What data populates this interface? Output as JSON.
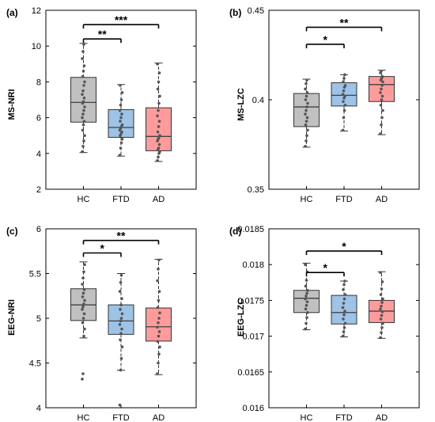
{
  "colors": {
    "HC": "#c0c0c0",
    "FTD": "#9dc3e6",
    "AD": "#ff9b9b",
    "median": "#404040",
    "points": "#555555",
    "axis": "#000000"
  },
  "chart_data": [
    {
      "type": "box",
      "panel": "(a)",
      "ylabel": "MS-NRI",
      "categories": [
        "HC",
        "FTD",
        "AD"
      ],
      "ylim": [
        2,
        12
      ],
      "yticks": [
        "2",
        "4",
        "6",
        "8",
        "10",
        "12"
      ],
      "boxes": [
        {
          "category": "HC",
          "min": 4.05,
          "q1": 5.75,
          "median": 6.85,
          "q3": 8.25,
          "max": 10.15,
          "points": [
            4.1,
            4.4,
            4.7,
            5.0,
            5.3,
            5.6,
            5.8,
            6.0,
            6.2,
            6.4,
            6.6,
            6.8,
            6.9,
            7.1,
            7.3,
            7.5,
            7.8,
            8.0,
            8.3,
            8.6,
            8.9,
            9.3,
            9.7,
            10.1
          ]
        },
        {
          "category": "FTD",
          "min": 3.85,
          "q1": 4.9,
          "median": 5.45,
          "q3": 6.45,
          "max": 7.85,
          "points": [
            3.9,
            4.3,
            4.6,
            4.8,
            5.0,
            5.1,
            5.2,
            5.3,
            5.4,
            5.5,
            5.6,
            5.8,
            6.0,
            6.2,
            6.4,
            6.7,
            7.0,
            7.4,
            7.8
          ]
        },
        {
          "category": "AD",
          "min": 3.55,
          "q1": 4.15,
          "median": 4.95,
          "q3": 6.55,
          "max": 9.05,
          "points": [
            3.6,
            3.8,
            4.0,
            4.1,
            4.2,
            4.3,
            4.5,
            4.7,
            4.8,
            4.9,
            5.0,
            5.2,
            5.5,
            5.8,
            6.1,
            6.4,
            6.8,
            7.2,
            7.6,
            8.0,
            8.5,
            9.0
          ]
        }
      ],
      "significance": [
        {
          "from": "HC",
          "to": "FTD",
          "y": 10.4,
          "label": "**"
        },
        {
          "from": "HC",
          "to": "AD",
          "y": 11.2,
          "label": "***"
        }
      ]
    },
    {
      "type": "box",
      "panel": "(b)",
      "ylabel": "MS-LZC",
      "categories": [
        "HC",
        "FTD",
        "AD"
      ],
      "ylim": [
        0.35,
        0.45
      ],
      "yticks": [
        "0.35",
        "0.4",
        "0.45"
      ],
      "boxes": [
        {
          "category": "HC",
          "min": 0.3735,
          "q1": 0.385,
          "median": 0.396,
          "q3": 0.4035,
          "max": 0.4115,
          "points": [
            0.374,
            0.377,
            0.38,
            0.383,
            0.386,
            0.388,
            0.39,
            0.392,
            0.394,
            0.396,
            0.398,
            0.4,
            0.402,
            0.404,
            0.406,
            0.409,
            0.411
          ]
        },
        {
          "category": "FTD",
          "min": 0.3825,
          "q1": 0.3965,
          "median": 0.4025,
          "q3": 0.4095,
          "max": 0.414,
          "points": [
            0.383,
            0.39,
            0.394,
            0.397,
            0.399,
            0.401,
            0.402,
            0.403,
            0.405,
            0.407,
            0.408,
            0.41,
            0.412,
            0.414
          ]
        },
        {
          "category": "AD",
          "min": 0.3805,
          "q1": 0.399,
          "median": 0.4085,
          "q3": 0.413,
          "max": 0.4165,
          "points": [
            0.381,
            0.386,
            0.39,
            0.394,
            0.397,
            0.4,
            0.402,
            0.404,
            0.406,
            0.408,
            0.41,
            0.411,
            0.412,
            0.413,
            0.415,
            0.416
          ]
        }
      ],
      "significance": [
        {
          "from": "HC",
          "to": "FTD",
          "y": 0.431,
          "label": "*"
        },
        {
          "from": "HC",
          "to": "AD",
          "y": 0.4405,
          "label": "**"
        }
      ]
    },
    {
      "type": "box",
      "panel": "(c)",
      "ylabel": "EEG-NRI",
      "categories": [
        "HC",
        "FTD",
        "AD"
      ],
      "ylim": [
        4,
        6
      ],
      "yticks": [
        "4",
        "4.5",
        "5",
        "5.5",
        "6"
      ],
      "boxes": [
        {
          "category": "HC",
          "min": 4.78,
          "q1": 4.975,
          "median": 5.15,
          "q3": 5.33,
          "max": 5.63,
          "points": [
            4.32,
            4.38,
            4.8,
            4.88,
            4.95,
            5.0,
            5.05,
            5.1,
            5.13,
            5.16,
            5.2,
            5.24,
            5.28,
            5.32,
            5.38,
            5.45,
            5.52,
            5.6
          ]
        },
        {
          "category": "FTD",
          "min": 4.42,
          "q1": 4.82,
          "median": 4.97,
          "q3": 5.15,
          "max": 5.5,
          "points": [
            4.03,
            4.42,
            4.55,
            4.68,
            4.76,
            4.83,
            4.88,
            4.93,
            4.97,
            5.0,
            5.05,
            5.1,
            5.15,
            5.22,
            5.3,
            5.4,
            5.48
          ]
        },
        {
          "category": "AD",
          "min": 4.37,
          "q1": 4.745,
          "median": 4.905,
          "q3": 5.115,
          "max": 5.66,
          "points": [
            4.38,
            4.5,
            4.6,
            4.68,
            4.74,
            4.8,
            4.85,
            4.9,
            4.95,
            5.0,
            5.06,
            5.12,
            5.2,
            5.3,
            5.42,
            5.55,
            5.65
          ]
        }
      ],
      "significance": [
        {
          "from": "HC",
          "to": "FTD",
          "y": 5.73,
          "label": "*"
        },
        {
          "from": "HC",
          "to": "AD",
          "y": 5.87,
          "label": "**"
        }
      ]
    },
    {
      "type": "box",
      "panel": "(d)",
      "ylabel": "EEG-LZC",
      "categories": [
        "HC",
        "FTD",
        "AD"
      ],
      "ylim": [
        0.016,
        0.0185
      ],
      "yticks": [
        "0.016",
        "0.0165",
        "0.017",
        "0.0175",
        "0.018",
        "0.0185"
      ],
      "boxes": [
        {
          "category": "HC",
          "min": 0.01709,
          "q1": 0.01733,
          "median": 0.01753,
          "q3": 0.01764,
          "max": 0.01802,
          "points": [
            0.0171,
            0.01718,
            0.01726,
            0.01733,
            0.01738,
            0.01743,
            0.01748,
            0.01752,
            0.01756,
            0.0176,
            0.01764,
            0.0177,
            0.01778,
            0.0179,
            0.018
          ]
        },
        {
          "category": "FTD",
          "min": 0.01699,
          "q1": 0.01717,
          "median": 0.01733,
          "q3": 0.01757,
          "max": 0.01777,
          "points": [
            0.017,
            0.01706,
            0.01712,
            0.01718,
            0.01724,
            0.0173,
            0.01735,
            0.0174,
            0.01746,
            0.01752,
            0.01758,
            0.01765,
            0.01772,
            0.01777
          ]
        },
        {
          "category": "AD",
          "min": 0.01697,
          "q1": 0.01719,
          "median": 0.01735,
          "q3": 0.0175,
          "max": 0.0179,
          "points": [
            0.01698,
            0.01705,
            0.01712,
            0.01718,
            0.01724,
            0.01729,
            0.01734,
            0.01738,
            0.01742,
            0.01747,
            0.01752,
            0.01758,
            0.01766,
            0.01776,
            0.01789
          ]
        }
      ],
      "significance": [
        {
          "from": "HC",
          "to": "FTD",
          "y": 0.01789,
          "label": "*"
        },
        {
          "from": "HC",
          "to": "AD",
          "y": 0.01819,
          "label": "*"
        }
      ]
    }
  ]
}
